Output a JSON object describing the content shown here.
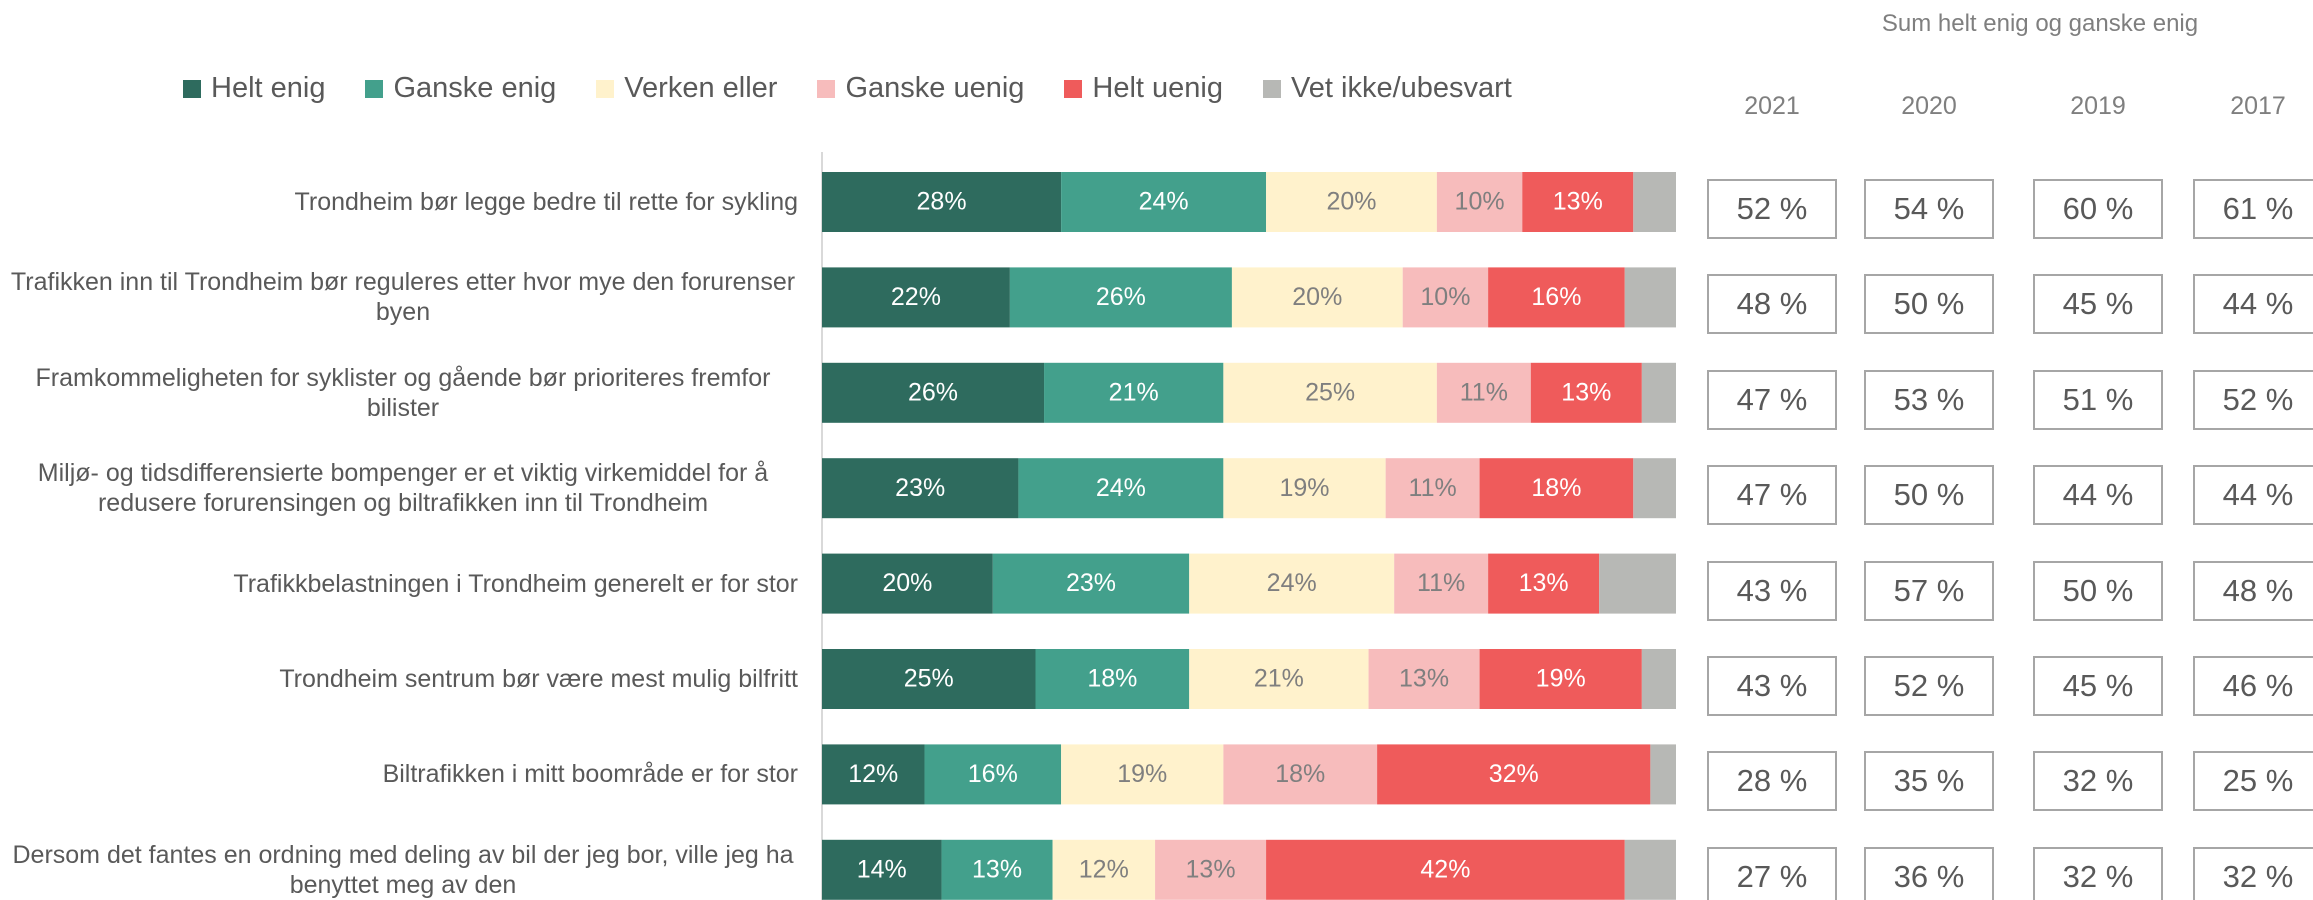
{
  "chart_data": {
    "type": "bar",
    "orientation": "horizontal",
    "stacked": true,
    "categories": [
      "Trondheim bør legge bedre til rette for sykling",
      "Trafikken inn til Trondheim bør reguleres etter hvor mye den forurenser byen",
      "Framkommeligheten for syklister og gående bør prioriteres fremfor bilister",
      "Miljø- og tidsdifferensierte bompenger er et viktig virkemiddel for å redusere forurensingen og biltrafikken inn til Trondheim",
      "Trafikkbelastningen i Trondheim generelt er for stor",
      "Trondheim sentrum bør være mest mulig bilfritt",
      "Biltrafikken i mitt boområde er for stor",
      "Dersom det fantes en ordning med deling av bil der jeg bor, ville jeg ha benyttet meg av den"
    ],
    "series": [
      {
        "name": "Helt enig",
        "color": "#2e6b5e",
        "label_color": "#ffffff",
        "values": [
          28,
          22,
          26,
          23,
          20,
          25,
          12,
          14
        ],
        "value_labels": [
          "28%",
          "22%",
          "26%",
          "23%",
          "20%",
          "25%",
          "12%",
          "14%"
        ]
      },
      {
        "name": "Ganske enig",
        "color": "#43a08c",
        "label_color": "#ffffff",
        "values": [
          24,
          26,
          21,
          24,
          23,
          18,
          16,
          13
        ],
        "value_labels": [
          "24%",
          "26%",
          "21%",
          "24%",
          "23%",
          "18%",
          "16%",
          "13%"
        ]
      },
      {
        "name": "Verken eller",
        "color": "#fff2cc",
        "label_color": "#7f7f7f",
        "values": [
          20,
          20,
          25,
          19,
          24,
          21,
          19,
          12
        ],
        "value_labels": [
          "20%",
          "20%",
          "25%",
          "19%",
          "24%",
          "21%",
          "19%",
          "12%"
        ]
      },
      {
        "name": "Ganske uenig",
        "color": "#f7bcbc",
        "label_color": "#7f7f7f",
        "values": [
          10,
          10,
          11,
          11,
          11,
          13,
          18,
          13
        ],
        "value_labels": [
          "10%",
          "10%",
          "11%",
          "11%",
          "11%",
          "13%",
          "18%",
          "13%"
        ]
      },
      {
        "name": "Helt uenig",
        "color": "#ef5b5b",
        "label_color": "#ffffff",
        "values": [
          13,
          16,
          13,
          18,
          13,
          19,
          32,
          42
        ],
        "value_labels": [
          "13%",
          "16%",
          "13%",
          "18%",
          "13%",
          "19%",
          "32%",
          "42%"
        ]
      },
      {
        "name": "Vet ikke/ubesvart",
        "color": "#b7b8b5",
        "values": [
          5,
          6,
          4,
          5,
          9,
          4,
          3,
          6
        ]
      }
    ],
    "xlim": [
      0,
      100
    ]
  },
  "sum_table": {
    "title": "Sum helt enig og ganske enig",
    "columns": [
      "2021",
      "2020",
      "2019",
      "2017"
    ],
    "rows": [
      [
        "52 %",
        "54 %",
        "60 %",
        "61 %"
      ],
      [
        "48 %",
        "50 %",
        "45 %",
        "44 %"
      ],
      [
        "47 %",
        "53 %",
        "51 %",
        "52 %"
      ],
      [
        "47 %",
        "50 %",
        "44 %",
        "44 %"
      ],
      [
        "43 %",
        "57 %",
        "50 %",
        "48 %"
      ],
      [
        "43 %",
        "52 %",
        "45 %",
        "46 %"
      ],
      [
        "28 %",
        "35 %",
        "32 %",
        "25 %"
      ],
      [
        "27 %",
        "36 %",
        "32 %",
        "32 %"
      ]
    ]
  }
}
